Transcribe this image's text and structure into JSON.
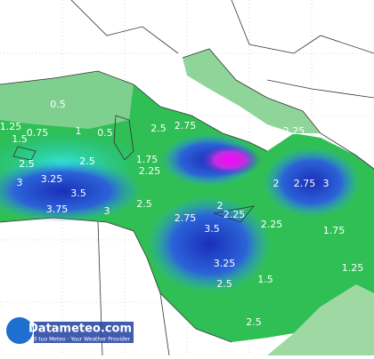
{
  "map": {
    "contour_labels": [
      "0.5",
      "1.25",
      "0.75",
      "1",
      "0.5",
      "1.5",
      "2.5",
      "2.75",
      "2.5",
      "3",
      "3.25",
      "2.5",
      "1.75",
      "2.25",
      "3.5",
      "3.75",
      "3",
      "2.5",
      "2.75",
      "2.25",
      "2",
      "3.5",
      "2.25",
      "3.25",
      "2.5",
      "1.5",
      "2.25",
      "2",
      "2.75",
      "3",
      "1.75",
      "1.25",
      "2.5"
    ],
    "logo": {
      "name": "Datameteo.com",
      "tagline": "Il tuo Meteo · Your Weather Provider"
    }
  }
}
